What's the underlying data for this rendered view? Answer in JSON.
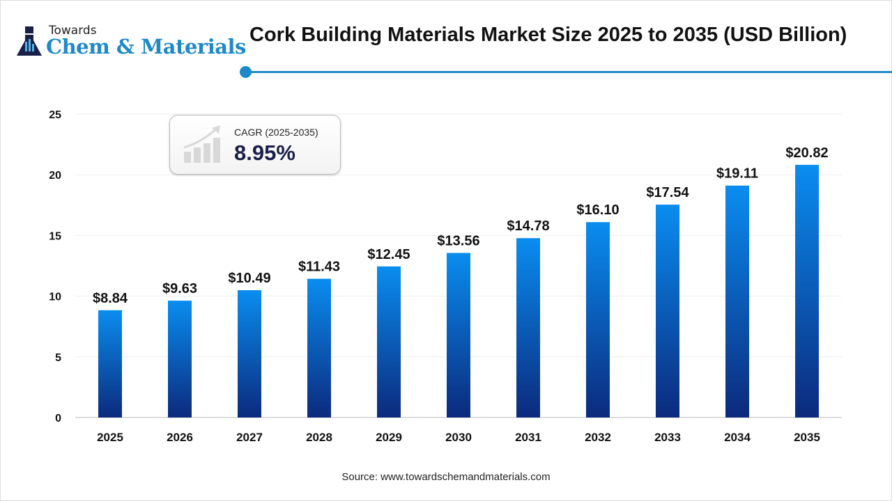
{
  "logo": {
    "top": "Towards",
    "main": "Chem & Materials"
  },
  "colors": {
    "accent": "#1e88c8",
    "bar_top": "#0a8df0",
    "bar_bottom": "#0b2a7d"
  },
  "cagr": {
    "label": "CAGR (2025-2035)",
    "value": "8.95%"
  },
  "source": "Source: www.towardschemandmaterials.com",
  "chart_data": {
    "type": "bar",
    "title": "Cork Building Materials Market Size 2025 to 2035 (USD Billion)",
    "categories": [
      "2025",
      "2026",
      "2027",
      "2028",
      "2029",
      "2030",
      "2031",
      "2032",
      "2033",
      "2034",
      "2035"
    ],
    "values": [
      8.84,
      9.63,
      10.49,
      11.43,
      12.45,
      13.56,
      14.78,
      16.1,
      17.54,
      19.11,
      20.82
    ],
    "data_labels": [
      "$8.84",
      "$9.63",
      "$10.49",
      "$11.43",
      "$12.45",
      "$13.56",
      "$14.78",
      "$16.10",
      "$17.54",
      "$19.11",
      "$20.82"
    ],
    "yticks": [
      0,
      5,
      10,
      15,
      20,
      25
    ],
    "ylim": [
      0,
      25
    ],
    "grid": true,
    "xlabel": "",
    "ylabel": ""
  }
}
